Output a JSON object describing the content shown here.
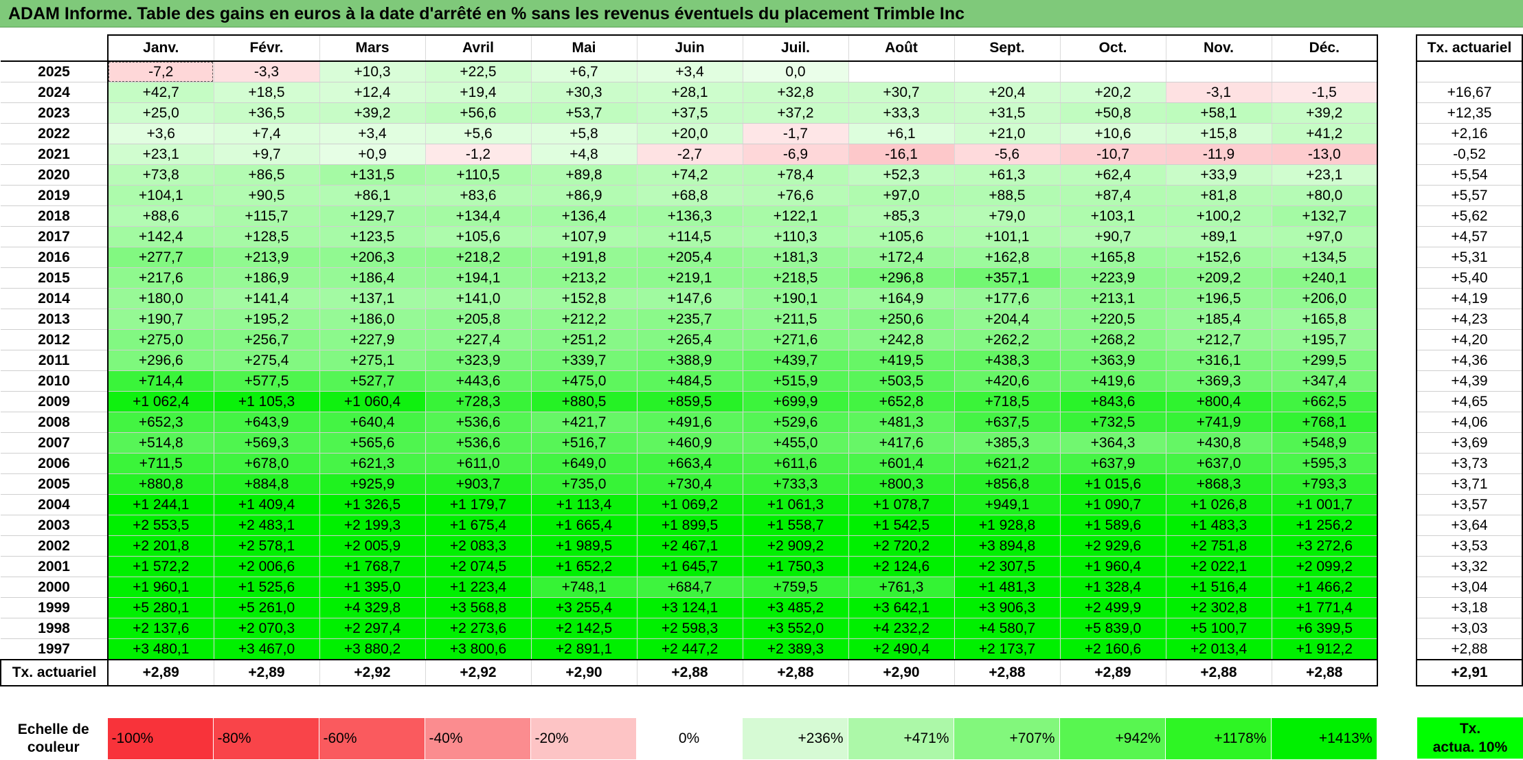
{
  "title": "ADAM Informe. Table des gains en euros à la date d'arrêté en % sans les revenus éventuels du placement Trimble Inc",
  "months": [
    "Janv.",
    "Févr.",
    "Mars",
    "Avril",
    "Mai",
    "Juin",
    "Juil.",
    "Août",
    "Sept.",
    "Oct.",
    "Nov.",
    "Déc."
  ],
  "rate_header": "Tx. actuariel",
  "rows": [
    {
      "year": "2025",
      "values": [
        "-7,2",
        "-3,3",
        "+10,3",
        "+22,5",
        "+6,7",
        "+3,4",
        "0,0",
        "",
        "",
        "",
        "",
        ""
      ],
      "rate": ""
    },
    {
      "year": "2024",
      "values": [
        "+42,7",
        "+18,5",
        "+12,4",
        "+19,4",
        "+30,3",
        "+28,1",
        "+32,8",
        "+30,7",
        "+20,4",
        "+20,2",
        "-3,1",
        "-1,5"
      ],
      "rate": "+16,67"
    },
    {
      "year": "2023",
      "values": [
        "+25,0",
        "+36,5",
        "+39,2",
        "+56,6",
        "+53,7",
        "+37,5",
        "+37,2",
        "+33,3",
        "+31,5",
        "+50,8",
        "+58,1",
        "+39,2"
      ],
      "rate": "+12,35"
    },
    {
      "year": "2022",
      "values": [
        "+3,6",
        "+7,4",
        "+3,4",
        "+5,6",
        "+5,8",
        "+20,0",
        "-1,7",
        "+6,1",
        "+21,0",
        "+10,6",
        "+15,8",
        "+41,2"
      ],
      "rate": "+2,16"
    },
    {
      "year": "2021",
      "values": [
        "+23,1",
        "+9,7",
        "+0,9",
        "-1,2",
        "+4,8",
        "-2,7",
        "-6,9",
        "-16,1",
        "-5,6",
        "-10,7",
        "-11,9",
        "-13,0"
      ],
      "rate": "-0,52"
    },
    {
      "year": "2020",
      "values": [
        "+73,8",
        "+86,5",
        "+131,5",
        "+110,5",
        "+89,8",
        "+74,2",
        "+78,4",
        "+52,3",
        "+61,3",
        "+62,4",
        "+33,9",
        "+23,1"
      ],
      "rate": "+5,54"
    },
    {
      "year": "2019",
      "values": [
        "+104,1",
        "+90,5",
        "+86,1",
        "+83,6",
        "+86,9",
        "+68,8",
        "+76,6",
        "+97,0",
        "+88,5",
        "+87,4",
        "+81,8",
        "+80,0"
      ],
      "rate": "+5,57"
    },
    {
      "year": "2018",
      "values": [
        "+88,6",
        "+115,7",
        "+129,7",
        "+134,4",
        "+136,4",
        "+136,3",
        "+122,1",
        "+85,3",
        "+79,0",
        "+103,1",
        "+100,2",
        "+132,7"
      ],
      "rate": "+5,62"
    },
    {
      "year": "2017",
      "values": [
        "+142,4",
        "+128,5",
        "+123,5",
        "+105,6",
        "+107,9",
        "+114,5",
        "+110,3",
        "+105,6",
        "+101,1",
        "+90,7",
        "+89,1",
        "+97,0"
      ],
      "rate": "+4,57"
    },
    {
      "year": "2016",
      "values": [
        "+277,7",
        "+213,9",
        "+206,3",
        "+218,2",
        "+191,8",
        "+205,4",
        "+181,3",
        "+172,4",
        "+162,8",
        "+165,8",
        "+152,6",
        "+134,5"
      ],
      "rate": "+5,31"
    },
    {
      "year": "2015",
      "values": [
        "+217,6",
        "+186,9",
        "+186,4",
        "+194,1",
        "+213,2",
        "+219,1",
        "+218,5",
        "+296,8",
        "+357,1",
        "+223,9",
        "+209,2",
        "+240,1"
      ],
      "rate": "+5,40"
    },
    {
      "year": "2014",
      "values": [
        "+180,0",
        "+141,4",
        "+137,1",
        "+141,0",
        "+152,8",
        "+147,6",
        "+190,1",
        "+164,9",
        "+177,6",
        "+213,1",
        "+196,5",
        "+206,0"
      ],
      "rate": "+4,19"
    },
    {
      "year": "2013",
      "values": [
        "+190,7",
        "+195,2",
        "+186,0",
        "+205,8",
        "+212,2",
        "+235,7",
        "+211,5",
        "+250,6",
        "+204,4",
        "+220,5",
        "+185,4",
        "+165,8"
      ],
      "rate": "+4,23"
    },
    {
      "year": "2012",
      "values": [
        "+275,0",
        "+256,7",
        "+227,9",
        "+227,4",
        "+251,2",
        "+265,4",
        "+271,6",
        "+242,8",
        "+262,2",
        "+268,2",
        "+212,7",
        "+195,7"
      ],
      "rate": "+4,20"
    },
    {
      "year": "2011",
      "values": [
        "+296,6",
        "+275,4",
        "+275,1",
        "+323,9",
        "+339,7",
        "+388,9",
        "+439,7",
        "+419,5",
        "+438,3",
        "+363,9",
        "+316,1",
        "+299,5"
      ],
      "rate": "+4,36"
    },
    {
      "year": "2010",
      "values": [
        "+714,4",
        "+577,5",
        "+527,7",
        "+443,6",
        "+475,0",
        "+484,5",
        "+515,9",
        "+503,5",
        "+420,6",
        "+419,6",
        "+369,3",
        "+347,4"
      ],
      "rate": "+4,39"
    },
    {
      "year": "2009",
      "values": [
        "+1 062,4",
        "+1 105,3",
        "+1 060,4",
        "+728,3",
        "+880,5",
        "+859,5",
        "+699,9",
        "+652,8",
        "+718,5",
        "+843,6",
        "+800,4",
        "+662,5"
      ],
      "rate": "+4,65"
    },
    {
      "year": "2008",
      "values": [
        "+652,3",
        "+643,9",
        "+640,4",
        "+536,6",
        "+421,7",
        "+491,6",
        "+529,6",
        "+481,3",
        "+637,5",
        "+732,5",
        "+741,9",
        "+768,1"
      ],
      "rate": "+4,06"
    },
    {
      "year": "2007",
      "values": [
        "+514,8",
        "+569,3",
        "+565,6",
        "+536,6",
        "+516,7",
        "+460,9",
        "+455,0",
        "+417,6",
        "+385,3",
        "+364,3",
        "+430,8",
        "+548,9"
      ],
      "rate": "+3,69"
    },
    {
      "year": "2006",
      "values": [
        "+711,5",
        "+678,0",
        "+621,3",
        "+611,0",
        "+649,0",
        "+663,4",
        "+611,6",
        "+601,4",
        "+621,2",
        "+637,9",
        "+637,0",
        "+595,3"
      ],
      "rate": "+3,73"
    },
    {
      "year": "2005",
      "values": [
        "+880,8",
        "+884,8",
        "+925,9",
        "+903,7",
        "+735,0",
        "+730,4",
        "+733,3",
        "+800,3",
        "+856,8",
        "+1 015,6",
        "+868,3",
        "+793,3"
      ],
      "rate": "+3,71"
    },
    {
      "year": "2004",
      "values": [
        "+1 244,1",
        "+1 409,4",
        "+1 326,5",
        "+1 179,7",
        "+1 113,4",
        "+1 069,2",
        "+1 061,3",
        "+1 078,7",
        "+949,1",
        "+1 090,7",
        "+1 026,8",
        "+1 001,7"
      ],
      "rate": "+3,57"
    },
    {
      "year": "2003",
      "values": [
        "+2 553,5",
        "+2 483,1",
        "+2 199,3",
        "+1 675,4",
        "+1 665,4",
        "+1 899,5",
        "+1 558,7",
        "+1 542,5",
        "+1 928,8",
        "+1 589,6",
        "+1 483,3",
        "+1 256,2"
      ],
      "rate": "+3,64"
    },
    {
      "year": "2002",
      "values": [
        "+2 201,8",
        "+2 578,1",
        "+2 005,9",
        "+2 083,3",
        "+1 989,5",
        "+2 467,1",
        "+2 909,2",
        "+2 720,2",
        "+3 894,8",
        "+2 929,6",
        "+2 751,8",
        "+3 272,6"
      ],
      "rate": "+3,53"
    },
    {
      "year": "2001",
      "values": [
        "+1 572,2",
        "+2 006,6",
        "+1 768,7",
        "+2 074,5",
        "+1 652,2",
        "+1 645,7",
        "+1 750,3",
        "+2 124,6",
        "+2 307,5",
        "+1 960,4",
        "+2 022,1",
        "+2 099,2"
      ],
      "rate": "+3,32"
    },
    {
      "year": "2000",
      "values": [
        "+1 960,1",
        "+1 525,6",
        "+1 395,0",
        "+1 223,4",
        "+748,1",
        "+684,7",
        "+759,5",
        "+761,3",
        "+1 481,3",
        "+1 328,4",
        "+1 516,4",
        "+1 466,2"
      ],
      "rate": "+3,04"
    },
    {
      "year": "1999",
      "values": [
        "+5 280,1",
        "+5 261,0",
        "+4 329,8",
        "+3 568,8",
        "+3 255,4",
        "+3 124,1",
        "+3 485,2",
        "+3 642,1",
        "+3 906,3",
        "+2 499,9",
        "+2 302,8",
        "+1 771,4"
      ],
      "rate": "+3,18"
    },
    {
      "year": "1998",
      "values": [
        "+2 137,6",
        "+2 070,3",
        "+2 297,4",
        "+2 273,6",
        "+2 142,5",
        "+2 598,3",
        "+3 552,0",
        "+4 232,2",
        "+4 580,7",
        "+5 839,0",
        "+5 100,7",
        "+6 399,5"
      ],
      "rate": "+3,03"
    },
    {
      "year": "1997",
      "values": [
        "+3 480,1",
        "+3 467,0",
        "+3 880,2",
        "+3 800,6",
        "+2 891,1",
        "+2 447,2",
        "+2 389,3",
        "+2 490,4",
        "+2 173,7",
        "+2 160,6",
        "+2 013,4",
        "+1 912,2"
      ],
      "rate": "+2,88"
    }
  ],
  "footer": {
    "label": "Tx. actuariel",
    "values": [
      "+2,89",
      "+2,89",
      "+2,92",
      "+2,92",
      "+2,90",
      "+2,88",
      "+2,88",
      "+2,90",
      "+2,88",
      "+2,89",
      "+2,88",
      "+2,88"
    ],
    "rate": "+2,91"
  },
  "scale": {
    "label_line1": "Echelle de",
    "label_line2": "couleur",
    "steps": [
      {
        "text": "-100%",
        "color": "#f8333a"
      },
      {
        "text": "-80%",
        "color": "#f94449"
      },
      {
        "text": "-60%",
        "color": "#fa5a5e"
      },
      {
        "text": "-40%",
        "color": "#fb8c8f"
      },
      {
        "text": "-20%",
        "color": "#fdc4c5"
      },
      {
        "text": "0%",
        "color": "#ffffff"
      },
      {
        "text": "+236%",
        "color": "#d6fad4"
      },
      {
        "text": "+471%",
        "color": "#acf8a8"
      },
      {
        "text": "+707%",
        "color": "#82f77c"
      },
      {
        "text": "+942%",
        "color": "#58f650"
      },
      {
        "text": "+1178%",
        "color": "#2ef524"
      },
      {
        "text": "+1413%",
        "color": "#00f000"
      }
    ],
    "rate_line1": "Tx.",
    "rate_line2": "actua. 10%",
    "rate_color": "#00ff00"
  },
  "colors": {
    "title_bar": "#7fc97a",
    "max_green": "#00f000",
    "negative_red": "#f8333a"
  }
}
